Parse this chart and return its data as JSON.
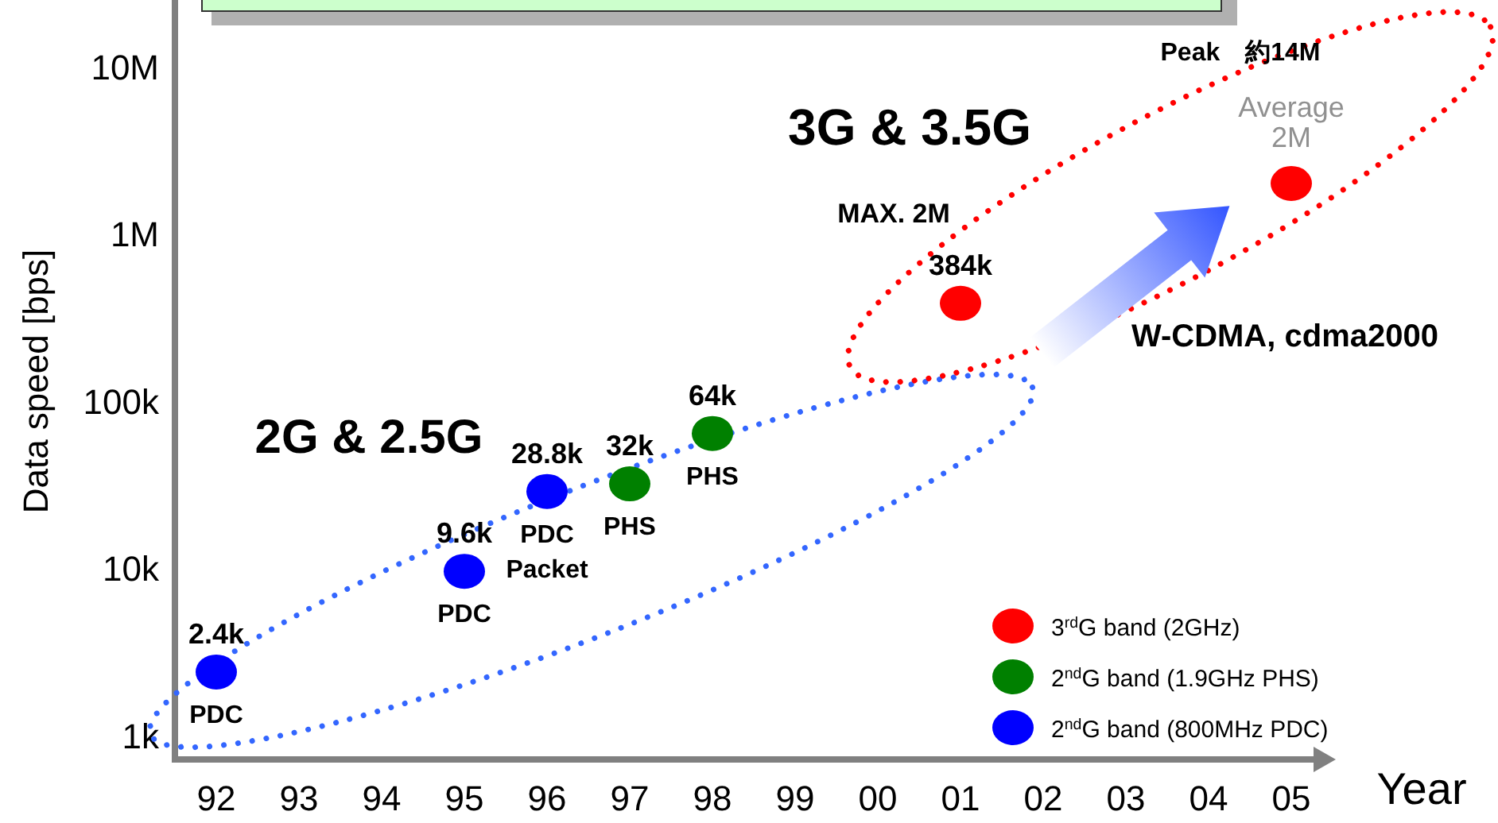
{
  "chart_data": {
    "type": "scatter",
    "xlabel": "Year",
    "ylabel": "Data speed [bps]",
    "categories": [
      "92",
      "93",
      "94",
      "95",
      "96",
      "97",
      "98",
      "99",
      "00",
      "01",
      "02",
      "03",
      "04",
      "05"
    ],
    "log": true,
    "ylim": [
      720,
      25000000
    ],
    "yticks": [
      {
        "value": 1000,
        "label": "1k"
      },
      {
        "value": 10000,
        "label": "10k"
      },
      {
        "value": 100000,
        "label": "100k"
      },
      {
        "value": 1000000,
        "label": "1M"
      },
      {
        "value": 10000000,
        "label": "10M"
      }
    ],
    "marker": "circle",
    "legend": "bottom right",
    "series": [
      {
        "name": "3$^{rd}$G band (2GHz)",
        "color": "#ff0000",
        "x": [
          "01",
          "05"
        ],
        "values": [
          384000,
          2000000
        ],
        "value_labels": [
          "384k",
          null
        ]
      },
      {
        "name": "2$^{nd}$G band (1.9GHz PHS)",
        "color": "#008000",
        "x": [
          "97",
          "98"
        ],
        "values": [
          32000,
          64000
        ],
        "value_labels": [
          "32k",
          "64k"
        ]
      },
      {
        "name": "2$^{nd}$G band (800MHz PDC)",
        "color": "#0000ff",
        "x": [
          "92",
          "95",
          "96"
        ],
        "values": [
          2400,
          9600,
          28800
        ],
        "value_labels": [
          "2.4k",
          "9.6k",
          "28.8k"
        ]
      }
    ],
    "annotations": [
      "3G & 3.5G",
      "2G & 2.5G",
      "MAX. 2M",
      "W-CDMA, cdma2000",
      "Peak　約14M",
      {
        "text": "PDC",
        "x": "92",
        "y": 2400
      },
      {
        "text": "PDC",
        "x": "95",
        "y": 9600
      },
      {
        "text": "PDC Packet",
        "x": "96",
        "y": 28800
      },
      {
        "text": "PHS",
        "x": "97",
        "y": 32000
      },
      {
        "text": "PHS",
        "x": "98",
        "y": 64000
      },
      {
        "text": "Average 2M",
        "x": "05",
        "y": 2000000
      }
    ]
  }
}
